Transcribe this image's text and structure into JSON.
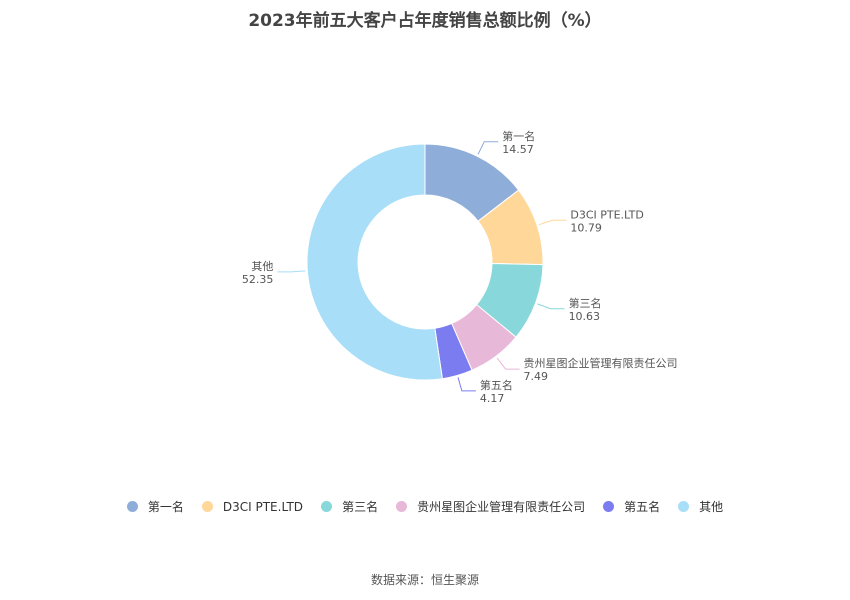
{
  "chart_data": {
    "type": "pie",
    "title": "2023年前五大客户占年度销售总额比例（%）",
    "slices": [
      {
        "label": "第一名",
        "value": 14.57,
        "display": "14.57",
        "color": "#8fadd9"
      },
      {
        "label": "D3CI PTE.LTD",
        "value": 10.79,
        "display": "10.79",
        "color": "#ffd899"
      },
      {
        "label": "第三名",
        "value": 10.63,
        "display": "10.63",
        "color": "#88d8db"
      },
      {
        "label": "贵州星图企业管理有限责任公司",
        "value": 7.49,
        "display": "7.49",
        "color": "#e8b8d8"
      },
      {
        "label": "第五名",
        "value": 4.17,
        "display": "4.17",
        "color": "#7b7cf0"
      },
      {
        "label": "其他",
        "value": 52.35,
        "display": "52.35",
        "color": "#a8def8"
      }
    ],
    "legend_position": "bottom"
  },
  "source": "数据来源：恒生聚源"
}
